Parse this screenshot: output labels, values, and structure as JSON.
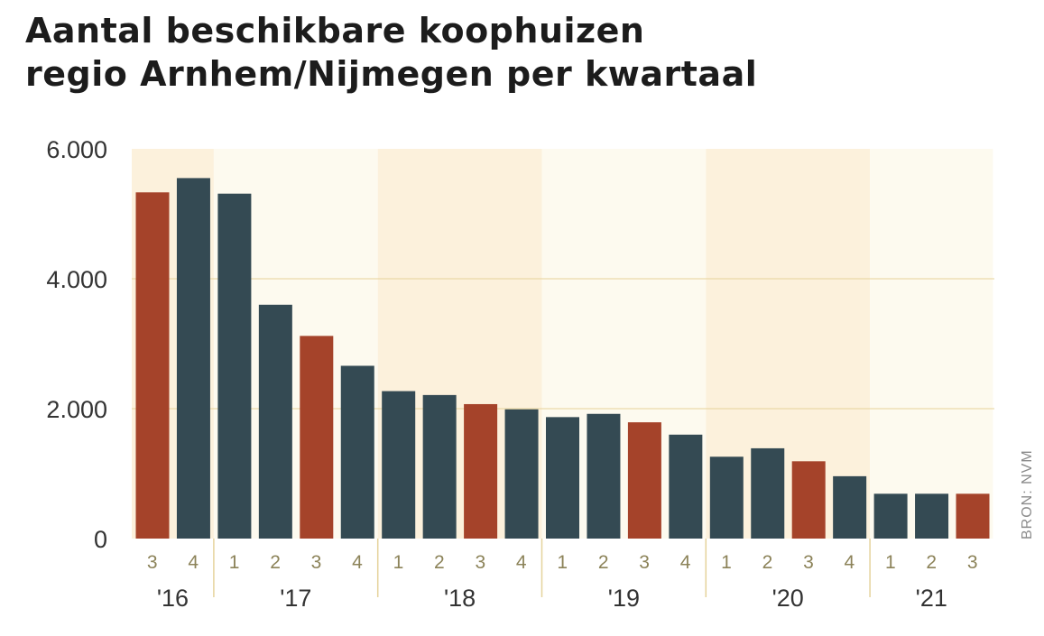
{
  "title_lines": [
    "Aantal beschikbare koophuizen",
    "regio Arnhem/Nijmegen per kwartaal"
  ],
  "source": "BRON: NVM",
  "colors": {
    "highlight": "#a5432a",
    "bar": "#344a53",
    "band_a": "#fcf1dc",
    "band_b": "#fdfaef",
    "grid": "#e6d39a",
    "year_divider": "#e5d39c",
    "quarter_label": "#8c8359",
    "axis_label": "#333333"
  },
  "chart_data": {
    "type": "bar",
    "title": "Aantal beschikbare koophuizen regio Arnhem/Nijmegen per kwartaal",
    "xlabel": "",
    "ylabel": "",
    "ylim": [
      0,
      6000
    ],
    "y_ticks": [
      0,
      2000,
      4000,
      6000
    ],
    "y_tick_labels": [
      "0",
      "2.000",
      "4.000",
      "6.000"
    ],
    "grid": true,
    "years": [
      {
        "label": "'16",
        "quarters": [
          "3",
          "4"
        ]
      },
      {
        "label": "'17",
        "quarters": [
          "1",
          "2",
          "3",
          "4"
        ]
      },
      {
        "label": "'18",
        "quarters": [
          "1",
          "2",
          "3",
          "4"
        ]
      },
      {
        "label": "'19",
        "quarters": [
          "1",
          "2",
          "3",
          "4"
        ]
      },
      {
        "label": "'20",
        "quarters": [
          "1",
          "2",
          "3",
          "4"
        ]
      },
      {
        "label": "'21",
        "quarters": [
          "1",
          "2",
          "3"
        ]
      }
    ],
    "values": [
      5330,
      5550,
      5310,
      3600,
      3120,
      2660,
      2270,
      2210,
      2070,
      1990,
      1870,
      1920,
      1790,
      1600,
      1260,
      1390,
      1190,
      960,
      690,
      690,
      690
    ],
    "highlighted": [
      true,
      false,
      false,
      false,
      true,
      false,
      false,
      false,
      true,
      false,
      false,
      false,
      true,
      false,
      false,
      false,
      true,
      false,
      false,
      false,
      true
    ]
  }
}
